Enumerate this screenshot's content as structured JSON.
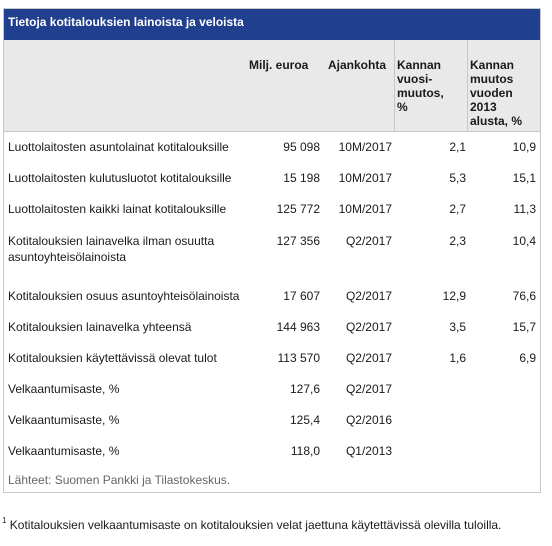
{
  "title": "Tietoja kotitalouksien lainoista ja veloista",
  "headers": {
    "value": "Milj. euroa",
    "period": "Ajankohta",
    "change": "Kannan vuosi-muutos, %",
    "change_since_2013": "Kannan muutos vuoden 2013 alusta, %"
  },
  "rows": [
    {
      "label": "Luottolaitosten asuntolainat kotitalouksille",
      "value": "95 098",
      "period": "10M/2017",
      "change": "2,1",
      "change2": "10,9"
    },
    {
      "label": "Luottolaitosten kulutusluotot kotitalouksille",
      "value": "15 198",
      "period": "10M/2017",
      "change": "5,3",
      "change2": "15,1"
    },
    {
      "label": "Luottolaitosten kaikki lainat kotitalouksille",
      "value": "125 772",
      "period": "10M/2017",
      "change": "2,7",
      "change2": "11,3"
    },
    {
      "label": "Kotitalouksien lainavelka ilman osuutta asuntoyhteisölainoista",
      "value": "127 356",
      "period": "Q2/2017",
      "change": "2,3",
      "change2": "10,4"
    },
    {
      "label": "Kotitalouksien osuus asuntoyhteisölainoista",
      "value": "17 607",
      "period": "Q2/2017",
      "change": "12,9",
      "change2": "76,6"
    },
    {
      "label": "Kotitalouksien lainavelka yhteensä",
      "value": "144 963",
      "period": "Q2/2017",
      "change": "3,5",
      "change2": "15,7"
    },
    {
      "label": "Kotitalouksien käytettävissä olevat tulot",
      "value": "113 570",
      "period": "Q2/2017",
      "change": "1,6",
      "change2": "6,9"
    },
    {
      "label": "Velkaantumisaste, %",
      "value": "127,6",
      "period": "Q2/2017",
      "change": "",
      "change2": ""
    },
    {
      "label": "Velkaantumisaste, %",
      "value": "125,4",
      "period": "Q2/2016",
      "change": "",
      "change2": ""
    },
    {
      "label": "Velkaantumisaste, %",
      "value": "118,0",
      "period": "Q1/2013",
      "change": "",
      "change2": ""
    }
  ],
  "source": "Lähteet: Suomen Pankki ja Tilastokeskus.",
  "footnote": {
    "marker": "1",
    "text": "Kotitalouksien velkaantumisaste on kotitalouksien velat jaettuna käytettävissä olevilla tuloilla."
  }
}
